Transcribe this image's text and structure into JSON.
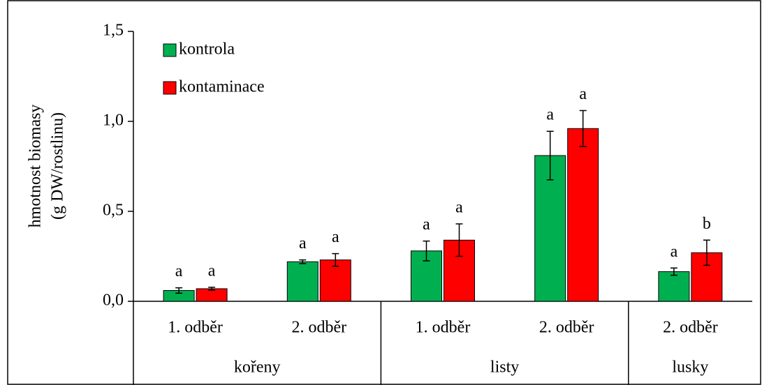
{
  "chart_data": {
    "type": "bar",
    "ylabel": [
      "hmotnost biomasy",
      "(g DW/rostlinu)"
    ],
    "categories": [
      "1. odběr",
      "2. odběr",
      "1. odběr",
      "2. odběr",
      "2. odběr"
    ],
    "category_groups": [
      "kořeny",
      "kořeny",
      "listy",
      "listy",
      "lusky"
    ],
    "series": [
      {
        "name": "kontrola",
        "color": "#00b050",
        "values": [
          0.06,
          0.22,
          0.28,
          0.81,
          0.165
        ],
        "errors": [
          0.015,
          0.01,
          0.055,
          0.135,
          0.02
        ],
        "annotations": [
          "a",
          "a",
          "a",
          "a",
          "a"
        ]
      },
      {
        "name": "kontaminace",
        "color": "#ff0000",
        "values": [
          0.07,
          0.23,
          0.34,
          0.96,
          0.27
        ],
        "errors": [
          0.008,
          0.035,
          0.09,
          0.1,
          0.07
        ],
        "annotations": [
          "a",
          "a",
          "a",
          "a",
          "b"
        ]
      }
    ],
    "ylim": [
      0,
      1.5
    ],
    "yticks": [
      {
        "value": 0,
        "label": "0,0"
      },
      {
        "value": 0.5,
        "label": "0,5"
      },
      {
        "value": 1,
        "label": "1,0"
      },
      {
        "value": 1.5,
        "label": "1,5"
      }
    ],
    "legend": "upper left"
  }
}
